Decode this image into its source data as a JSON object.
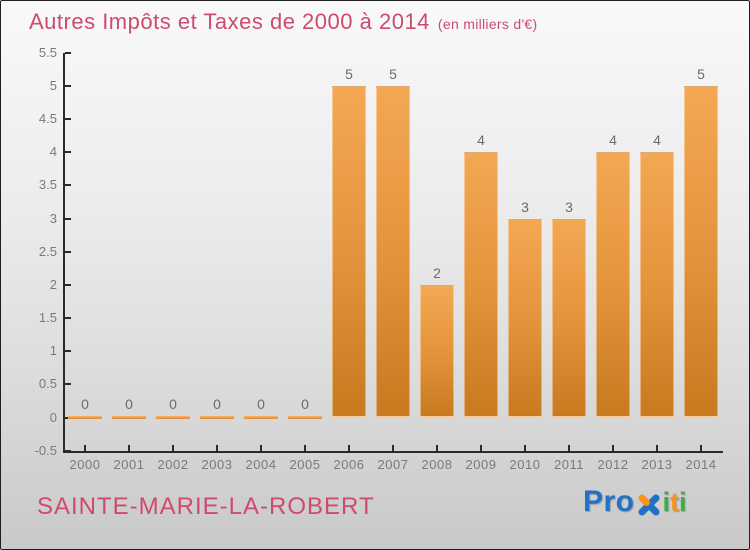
{
  "header": {
    "title": "Autres Impôts et Taxes de 2000 à 2014",
    "subtitle": "(en milliers d'€)"
  },
  "footer": {
    "city": "SAINTE-MARIE-LA-ROBERT",
    "logo": {
      "pro": "Pro",
      "letters": [
        {
          "ch": "i",
          "color": "#3aae49"
        },
        {
          "ch": "t",
          "color": "#f7941e"
        },
        {
          "ch": "i",
          "color": "#3aae49"
        }
      ],
      "pro_color": "#1f72c4",
      "x_blue": "#2170c2",
      "x_orange": "#f7941e"
    }
  },
  "colors": {
    "title_pink": "#ce4a6f",
    "bar_top": "#f4a853",
    "bar_bottom": "#c87a1f",
    "axis": "#2a2a2a",
    "tick_label": "#7a7a7a",
    "value_label": "#6b6b6b"
  },
  "chart_data": {
    "type": "bar",
    "title": "Autres Impôts et Taxes de 2000 à 2014",
    "subtitle": "(en milliers d'€)",
    "categories": [
      "2000",
      "2001",
      "2002",
      "2003",
      "2004",
      "2005",
      "2006",
      "2007",
      "2008",
      "2009",
      "2010",
      "2011",
      "2012",
      "2013",
      "2014"
    ],
    "values": [
      0,
      0,
      0,
      0,
      0,
      0,
      5,
      5,
      2,
      4,
      3,
      3,
      4,
      4,
      5
    ],
    "xlabel": "",
    "ylabel": "",
    "ylim": [
      -0.5,
      5.5
    ],
    "yticks": [
      -0.5,
      0,
      0.5,
      1,
      1.5,
      2,
      2.5,
      3,
      3.5,
      4,
      4.5,
      5,
      5.5
    ],
    "grid": false,
    "legend": false,
    "value_labels": true
  }
}
